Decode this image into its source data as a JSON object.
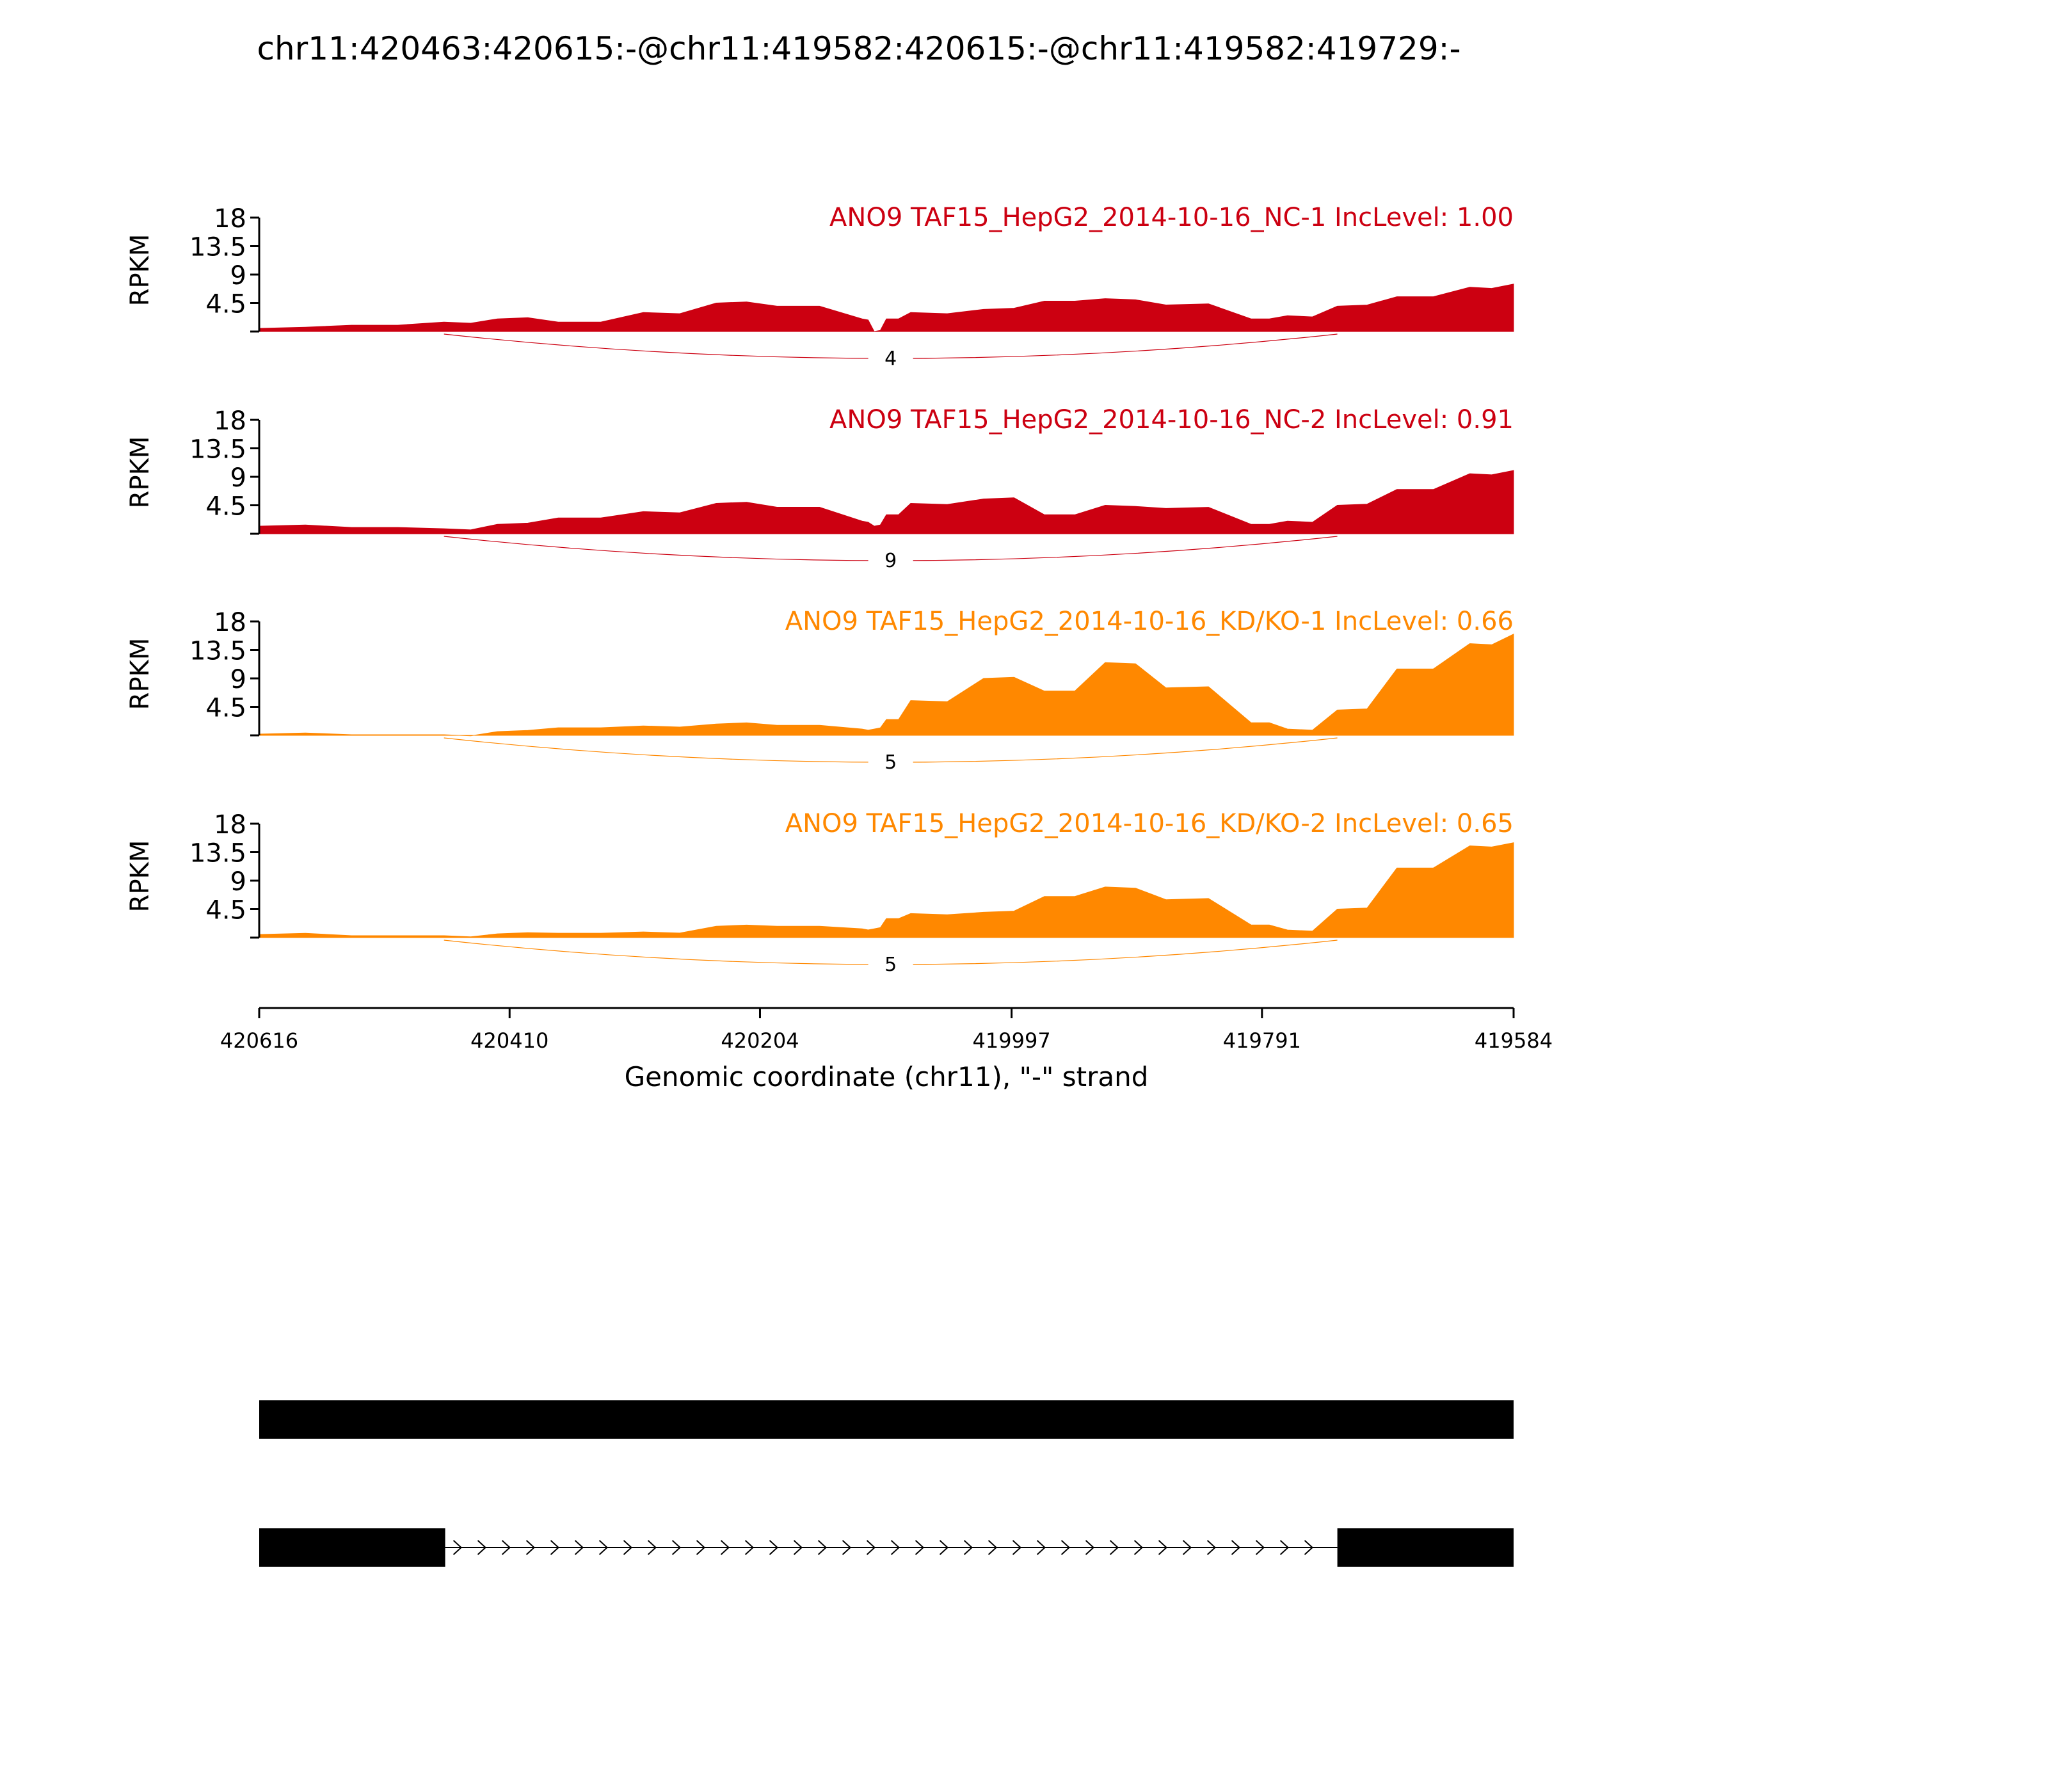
{
  "figure": {
    "title": "chr11:420463:420615:-@chr11:419582:420615:-@chr11:419582:419729:-"
  },
  "chart_data": {
    "type": "area",
    "title": "chr11:420463:420615:-@chr11:419582:420615:-@chr11:419582:419729:-",
    "xlabel": "Genomic coordinate (chr11), \"-\" strand",
    "ylabel": "RPKM",
    "x_reversed": true,
    "xlim": [
      420616,
      419584
    ],
    "x_ticks": [
      "420616",
      "420410",
      "420204",
      "419997",
      "419791",
      "419584"
    ],
    "x_tick_values": [
      420616,
      420410,
      420204,
      419997,
      419791,
      419584
    ],
    "ylim": [
      0,
      18
    ],
    "y_ticks": [
      "4.5",
      "9",
      "13.5",
      "18"
    ],
    "y_tick_values": [
      4.5,
      9,
      13.5,
      18
    ],
    "x": [
      420616,
      420540,
      420464,
      420420,
      420370,
      420300,
      420240,
      420190,
      420120,
      420110,
      420100,
      420080,
      420020,
      419970,
      419920,
      419870,
      419800,
      419770,
      419729,
      419680,
      419620,
      419584
    ],
    "series": [
      {
        "name": "ANO9 TAF15_HepG2_2014-10-16_NC-1 IncLevel: 1.00",
        "color": "#cc0011",
        "values": [
          0.5,
          1.0,
          1.5,
          2.0,
          1.5,
          3.0,
          4.5,
          4.0,
          2.0,
          0,
          2.0,
          3.0,
          3.5,
          4.8,
          5.2,
          4.2,
          2.0,
          2.5,
          4.0,
          5.5,
          7.0,
          7.5
        ],
        "junction": {
          "from": 420464,
          "to": 419729,
          "label": "4"
        }
      },
      {
        "name": "ANO9 TAF15_HepG2_2014-10-16_NC-2 IncLevel: 0.91",
        "color": "#cc0011",
        "values": [
          1.2,
          1.0,
          0.8,
          1.5,
          2.5,
          3.5,
          4.8,
          4.2,
          2.0,
          1.2,
          3.0,
          4.8,
          5.5,
          3.0,
          4.5,
          4.0,
          1.5,
          2.0,
          4.5,
          7.0,
          9.5,
          10.0
        ],
        "junction": {
          "from": 420464,
          "to": 419729,
          "label": "9"
        }
      },
      {
        "name": "ANO9 TAF15_HepG2_2014-10-16_KD/KO-1 IncLevel: 0.66",
        "color": "#ff8800",
        "values": [
          0.2,
          0.1,
          0.1,
          0.6,
          1.2,
          1.5,
          1.8,
          1.6,
          1.0,
          1.0,
          2.5,
          5.5,
          9.0,
          7.0,
          11.5,
          7.5,
          2.0,
          1.0,
          4.0,
          10.5,
          14.5,
          16.0
        ],
        "junction": {
          "from": 420464,
          "to": 419729,
          "label": "5"
        }
      },
      {
        "name": "ANO9 TAF15_HepG2_2014-10-16_KD/KO-2 IncLevel: 0.65",
        "color": "#ff8800",
        "values": [
          0.5,
          0.3,
          0.3,
          0.6,
          0.7,
          0.9,
          1.8,
          1.8,
          1.4,
          1.4,
          3.0,
          3.8,
          4.0,
          6.5,
          8.0,
          6.0,
          2.0,
          1.2,
          4.5,
          11.0,
          14.5,
          15.0
        ],
        "junction": {
          "from": 420464,
          "to": 419729,
          "label": "5"
        }
      }
    ],
    "isoforms": [
      {
        "exons": [
          [
            420616,
            419584
          ]
        ]
      },
      {
        "exons": [
          [
            420616,
            420463
          ],
          [
            419729,
            419584
          ]
        ],
        "intron_strand": "-"
      }
    ]
  }
}
